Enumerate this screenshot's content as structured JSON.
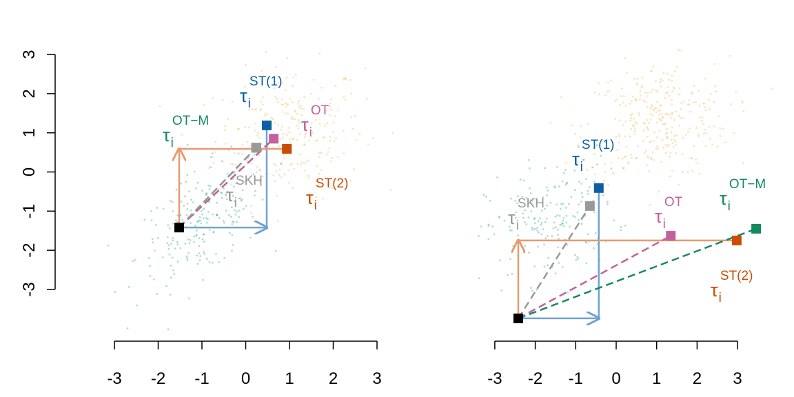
{
  "chart_data": [
    {
      "type": "scatter",
      "panel": "left",
      "xlim": [
        -3.3,
        3.3
      ],
      "ylim": [
        -3.8,
        3.5
      ],
      "x_ticks": [
        "-3",
        "-2",
        "-1",
        "0",
        "1",
        "2",
        "3"
      ],
      "y_ticks": [
        "-3",
        "-2",
        "-1",
        "0",
        "1",
        "2",
        "3"
      ],
      "grid": false,
      "source_cloud": {
        "color": "#1b9e77",
        "mean": [
          -1.0,
          -1.3
        ],
        "sd": [
          0.75,
          0.8
        ],
        "corr": 0.55,
        "n": 220
      },
      "target_cloud": {
        "color": "#f5c26b",
        "mean": [
          1.0,
          1.0
        ],
        "sd": [
          0.85,
          0.85
        ],
        "corr": 0.1,
        "n": 260
      },
      "origin": {
        "x": -1.52,
        "y": -1.42,
        "color": "#000000"
      },
      "methods": [
        {
          "key": "ST(1)",
          "label": "τ",
          "sub": "i",
          "sup": "ST(1)",
          "x": 0.48,
          "y": 1.19,
          "color": "#0b5fa5"
        },
        {
          "key": "OT",
          "label": "τ",
          "sub": "i",
          "sup": "OT",
          "x": 0.64,
          "y": 0.85,
          "color": "#c4609c"
        },
        {
          "key": "OT-M",
          "label": "τ",
          "sub": "i",
          "sup": "OT−M",
          "x": 0.24,
          "y": 0.62,
          "color": "#138a5e"
        },
        {
          "key": "SKH",
          "label": "τ",
          "sub": "i",
          "sup": "SKH",
          "x": 0.24,
          "y": 0.62,
          "color": "#999999"
        },
        {
          "key": "ST(2)",
          "label": "τ",
          "sub": "i",
          "sup": "ST(2)",
          "x": 0.94,
          "y": 0.59,
          "color": "#cc4c02"
        }
      ]
    },
    {
      "type": "scatter",
      "panel": "right",
      "xlim": [
        -3.3,
        3.5
      ],
      "ylim": [
        -3.8,
        3.5
      ],
      "x_ticks": [
        "-3",
        "-2",
        "-1",
        "0",
        "1",
        "2",
        "3"
      ],
      "grid": false,
      "source_cloud": {
        "color": "#1b9e77",
        "mean": [
          -1.6,
          -1.2
        ],
        "sd": [
          0.8,
          0.8
        ],
        "corr": 0.3,
        "n": 200
      },
      "target_cloud": {
        "color": "#f5c26b",
        "mean": [
          1.0,
          1.3
        ],
        "sd": [
          0.9,
          0.75
        ],
        "corr": 0.1,
        "n": 300
      },
      "origin": {
        "x": -2.42,
        "y": -3.74,
        "color": "#000000"
      },
      "methods": [
        {
          "key": "ST(1)",
          "label": "τ",
          "sub": "i",
          "sup": "ST(1)",
          "x": -0.43,
          "y": -0.41,
          "color": "#0b5fa5"
        },
        {
          "key": "SKH",
          "label": "τ",
          "sub": "i",
          "sup": "SKH",
          "x": -0.65,
          "y": -0.87,
          "color": "#999999"
        },
        {
          "key": "OT",
          "label": "τ",
          "sub": "i",
          "sup": "OT",
          "x": 1.35,
          "y": -1.63,
          "color": "#c4609c"
        },
        {
          "key": "OT-M",
          "label": "τ",
          "sub": "i",
          "sup": "OT−M",
          "x": 3.46,
          "y": -1.45,
          "color": "#138a5e"
        },
        {
          "key": "ST(2)",
          "label": "τ",
          "sub": "i",
          "sup": "ST(2)",
          "x": 2.98,
          "y": -1.75,
          "color": "#cc4c02"
        }
      ]
    }
  ]
}
